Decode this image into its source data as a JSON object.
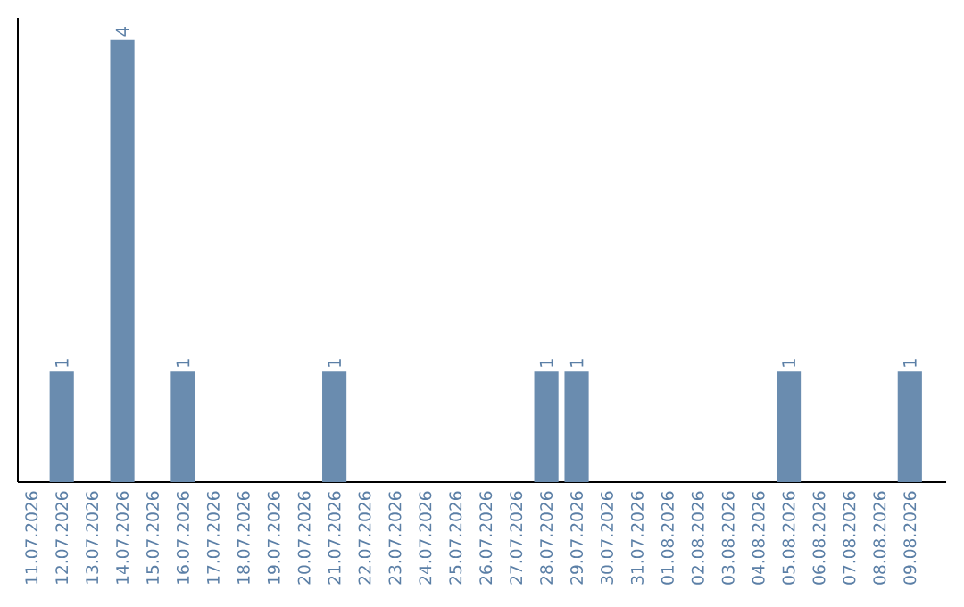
{
  "chart_data": {
    "type": "bar",
    "categories": [
      "11.07.2026",
      "12.07.2026",
      "13.07.2026",
      "14.07.2026",
      "15.07.2026",
      "16.07.2026",
      "17.07.2026",
      "18.07.2026",
      "19.07.2026",
      "20.07.2026",
      "21.07.2026",
      "22.07.2026",
      "23.07.2026",
      "24.07.2026",
      "25.07.2026",
      "26.07.2026",
      "27.07.2026",
      "28.07.2026",
      "29.07.2026",
      "30.07.2026",
      "31.07.2026",
      "01.08.2026",
      "02.08.2026",
      "03.08.2026",
      "04.08.2026",
      "05.08.2026",
      "06.08.2026",
      "07.08.2026",
      "08.08.2026",
      "09.08.2026"
    ],
    "values": [
      0,
      1,
      0,
      4,
      0,
      1,
      0,
      0,
      0,
      0,
      1,
      0,
      0,
      0,
      0,
      0,
      0,
      1,
      1,
      0,
      0,
      0,
      0,
      0,
      0,
      1,
      0,
      0,
      0,
      1
    ],
    "value_labels": [
      null,
      "1",
      null,
      "4",
      null,
      "1",
      null,
      null,
      null,
      null,
      "1",
      null,
      null,
      null,
      null,
      null,
      null,
      "1",
      "1",
      null,
      null,
      null,
      null,
      null,
      null,
      "1",
      null,
      null,
      null,
      "1"
    ],
    "color": "#6a8caf",
    "tick_labels": "x"
  }
}
